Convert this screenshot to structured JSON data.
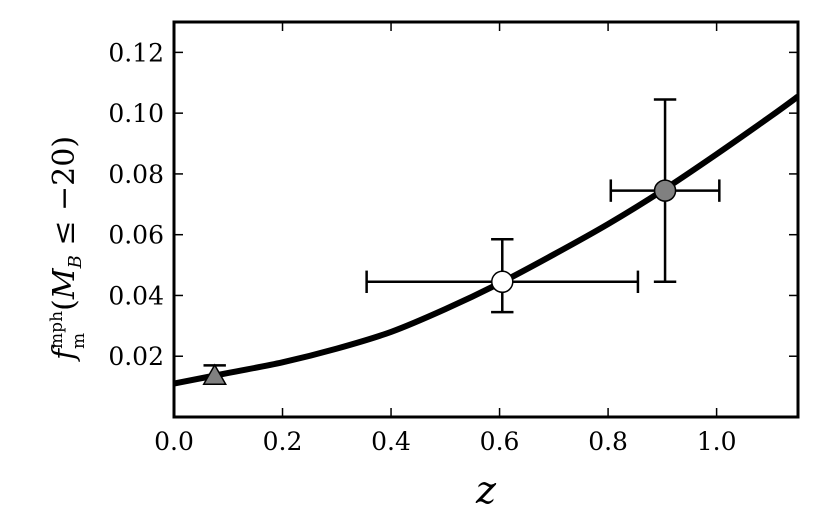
{
  "chart_data": {
    "type": "scatter",
    "title": "",
    "xlabel": "z",
    "ylabel": {
      "f": "f",
      "sup": "mph",
      "sub": "m",
      "paren_open": "(",
      "M": "M",
      "M_sub": "B",
      "rest": " ≤ −20)"
    },
    "xlim": [
      0.0,
      1.15
    ],
    "ylim": [
      0.0,
      0.13
    ],
    "x_ticks": [
      "0.0",
      "0.2",
      "0.4",
      "0.6",
      "0.8",
      "1.0"
    ],
    "x_tick_values": [
      0.0,
      0.2,
      0.4,
      0.6,
      0.8,
      1.0
    ],
    "y_ticks": [
      "0.02",
      "0.04",
      "0.06",
      "0.08",
      "0.10",
      "0.12"
    ],
    "y_tick_values": [
      0.02,
      0.04,
      0.06,
      0.08,
      0.1,
      0.12
    ],
    "grid": false,
    "legend": "none",
    "points": [
      {
        "x": 0.075,
        "y": 0.0135,
        "xerr": [
          0.0,
          0.0
        ],
        "yerr": [
          0.0,
          0.0035
        ],
        "marker": "triangle",
        "fill": "#808080"
      },
      {
        "x": 0.605,
        "y": 0.0445,
        "xerr": [
          0.25,
          0.25
        ],
        "yerr": [
          0.01,
          0.014
        ],
        "marker": "circle",
        "fill": "#ffffff"
      },
      {
        "x": 0.905,
        "y": 0.0745,
        "xerr": [
          0.1,
          0.1
        ],
        "yerr": [
          0.03,
          0.03
        ],
        "marker": "circle",
        "fill": "#808080"
      }
    ],
    "curve": {
      "x": [
        0.0,
        0.1,
        0.2,
        0.3,
        0.4,
        0.5,
        0.6,
        0.7,
        0.8,
        0.9,
        1.0,
        1.1,
        1.15
      ],
      "y": [
        0.011,
        0.0145,
        0.018,
        0.0225,
        0.028,
        0.0355,
        0.044,
        0.0535,
        0.0635,
        0.0745,
        0.0865,
        0.099,
        0.1055
      ],
      "color": "#000000"
    }
  }
}
